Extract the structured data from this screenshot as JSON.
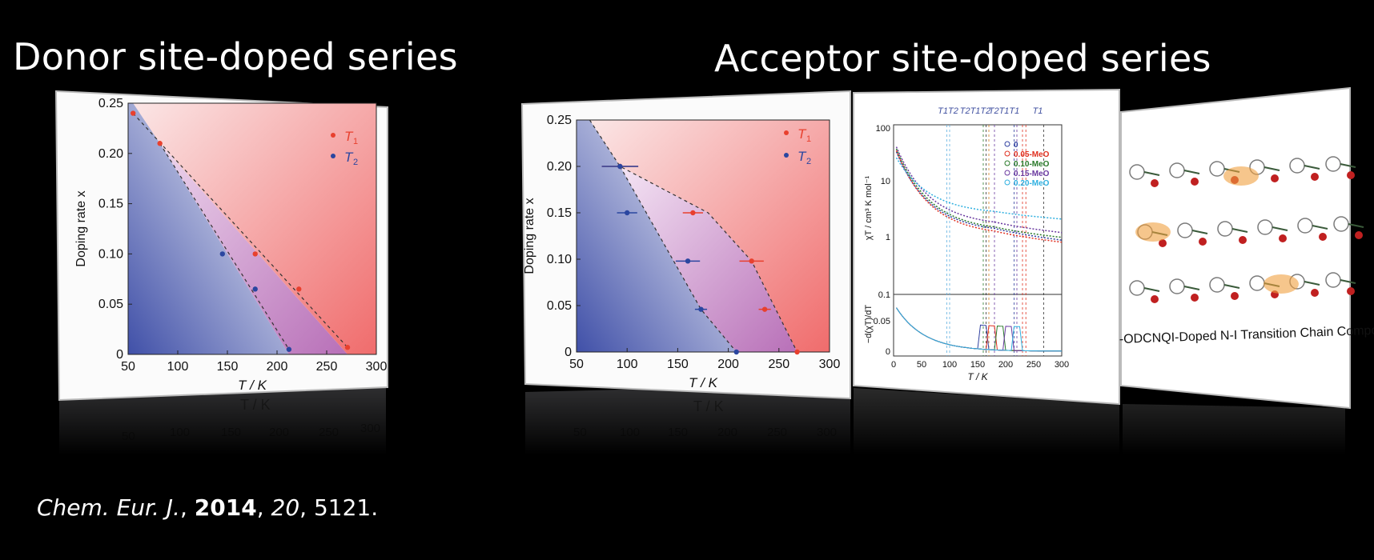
{
  "headings": {
    "donor": "Donor site-doped series",
    "acceptor": "Acceptor site-doped series"
  },
  "citation": {
    "journal": "Chem. Eur. J.",
    "year": "2014",
    "volume": "20",
    "page": "5121."
  },
  "colors": {
    "t1": "#e8402e",
    "t2": "#2a46a0",
    "red_region": "#f07070",
    "blue_region": "#5060b0",
    "purple_region": "#c080c0"
  },
  "chart_data": [
    {
      "type": "scatter",
      "id": "donor-phase-diagram",
      "xlabel": "T / K",
      "ylabel": "Doping rate x",
      "xlim": [
        50,
        300
      ],
      "ylim": [
        0,
        0.25
      ],
      "xticks": [
        "50",
        "100",
        "150",
        "200",
        "250",
        "300"
      ],
      "yticks": [
        "0",
        "0.05",
        "0.10",
        "0.15",
        "0.20",
        "0.25"
      ],
      "series": [
        {
          "name": "T1",
          "color": "#e8402e",
          "points": [
            [
              55,
              0.24
            ],
            [
              82,
              0.21
            ],
            [
              178,
              0.1
            ],
            [
              222,
              0.065
            ],
            [
              271,
              0.007
            ]
          ]
        },
        {
          "name": "T2",
          "color": "#2a46a0",
          "points": [
            [
              145,
              0.1
            ],
            [
              178,
              0.065
            ],
            [
              212,
              0.005
            ]
          ]
        }
      ],
      "boundaries": [
        [
          [
            55,
            0.24
          ],
          [
            271,
            0.007
          ]
        ],
        [
          [
            82,
            0.21
          ],
          [
            212,
            0.005
          ]
        ]
      ]
    },
    {
      "type": "scatter",
      "id": "acceptor-phase-diagram",
      "xlabel": "T / K",
      "ylabel": "Doping rate x",
      "xlim": [
        50,
        300
      ],
      "ylim": [
        0,
        0.25
      ],
      "xticks": [
        "50",
        "100",
        "150",
        "200",
        "250",
        "300"
      ],
      "yticks": [
        "0",
        "0.05",
        "0.10",
        "0.15",
        "0.20",
        "0.25"
      ],
      "series": [
        {
          "name": "T1",
          "color": "#e8402e",
          "points": [
            [
              93,
              0.2
            ],
            [
              165,
              0.15
            ],
            [
              223,
              0.098
            ],
            [
              236,
              0.046
            ],
            [
              268,
              0.0
            ]
          ]
        },
        {
          "name": "T2",
          "color": "#2a46a0",
          "points": [
            [
              93,
              0.2
            ],
            [
              100,
              0.15
            ],
            [
              160,
              0.098
            ],
            [
              173,
              0.046
            ],
            [
              208,
              0.0
            ]
          ]
        }
      ]
    },
    {
      "type": "line",
      "id": "susceptibility-plot",
      "xlabel": "T / K",
      "ylabel_top": "χT / cm³ K mol⁻¹",
      "ylabel_bottom": "−d(χT)/dT",
      "xticks": [
        "0",
        "50",
        "100",
        "150",
        "200",
        "250",
        "300"
      ],
      "yticks_top": [
        "100",
        "10",
        "1",
        "0.1"
      ],
      "yticks_bottom": [
        "0.05",
        "0"
      ],
      "markers": [
        "T1T2",
        "T2T1T2",
        "T2T1T1",
        "T1"
      ],
      "series": [
        {
          "name": "0",
          "color": "#3040a0"
        },
        {
          "name": "0.05-MeO",
          "color": "#e03020"
        },
        {
          "name": "0.10-MeO",
          "color": "#2a7a2a"
        },
        {
          "name": "0.15-MeO",
          "color": "#6a3aa0"
        },
        {
          "name": "0.20-MeO",
          "color": "#30b0e0"
        }
      ]
    }
  ],
  "structure_caption": "-ODCNQI-Doped N-I Transition Chain Compound"
}
